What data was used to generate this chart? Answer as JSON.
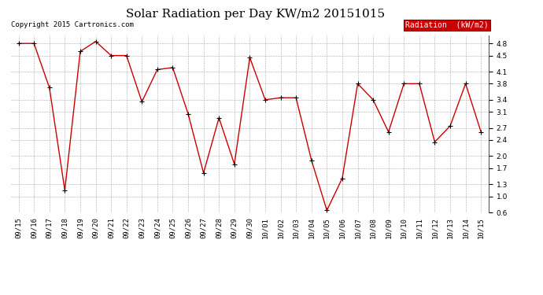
{
  "title": "Solar Radiation per Day KW/m2 20151015",
  "copyright_text": "Copyright 2015 Cartronics.com",
  "legend_label": "Radiation  (kW/m2)",
  "dates": [
    "09/15",
    "09/16",
    "09/17",
    "09/18",
    "09/19",
    "09/20",
    "09/21",
    "09/22",
    "09/23",
    "09/24",
    "09/25",
    "09/26",
    "09/27",
    "09/28",
    "09/29",
    "09/30",
    "10/01",
    "10/02",
    "10/03",
    "10/04",
    "10/05",
    "10/06",
    "10/07",
    "10/08",
    "10/09",
    "10/10",
    "10/11",
    "10/12",
    "10/13",
    "10/14",
    "10/15"
  ],
  "values": [
    4.8,
    4.8,
    3.7,
    1.15,
    4.6,
    4.85,
    4.5,
    4.5,
    3.35,
    4.15,
    4.2,
    3.05,
    1.58,
    2.95,
    1.8,
    4.45,
    3.4,
    3.45,
    3.45,
    1.9,
    0.65,
    1.45,
    3.8,
    3.4,
    2.6,
    3.8,
    3.8,
    2.35,
    2.75,
    3.8,
    2.6
  ],
  "ylim": [
    0.6,
    5.0
  ],
  "yticks": [
    0.6,
    1.0,
    1.3,
    1.7,
    2.0,
    2.4,
    2.7,
    3.1,
    3.4,
    3.8,
    4.1,
    4.5,
    4.8
  ],
  "line_color": "#cc0000",
  "marker_color": "#000000",
  "bg_color": "#ffffff",
  "grid_color": "#aaaaaa",
  "legend_bg": "#cc0000",
  "legend_text_color": "#ffffff",
  "title_fontsize": 11,
  "copyright_fontsize": 6.5,
  "tick_fontsize": 6.5,
  "legend_fontsize": 7
}
